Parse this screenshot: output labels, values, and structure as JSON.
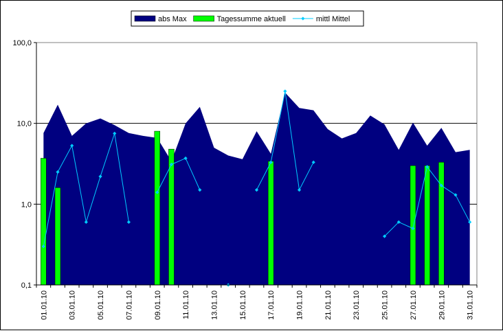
{
  "chart_data": {
    "type": "area",
    "y_scale": "log",
    "ylim": [
      0.1,
      100
    ],
    "y_ticks": [
      "100,0",
      "10,0",
      "1,0",
      "0,1"
    ],
    "grid": {
      "horizontal_major": true
    },
    "legend_position": "top",
    "x": [
      "01.01.10",
      "02.01.10",
      "03.01.10",
      "04.01.10",
      "05.01.10",
      "06.01.10",
      "07.01.10",
      "08.01.10",
      "09.01.10",
      "10.01.10",
      "11.01.10",
      "12.01.10",
      "13.01.10",
      "14.01.10",
      "15.01.10",
      "16.01.10",
      "17.01.10",
      "18.01.10",
      "19.01.10",
      "20.01.10",
      "21.01.10",
      "22.01.10",
      "23.01.10",
      "24.01.10",
      "25.01.10",
      "26.01.10",
      "27.01.10",
      "28.01.10",
      "29.01.10",
      "30.01.10",
      "31.01.10"
    ],
    "x_tick_labels": [
      "01.01.10",
      "03.01.10",
      "05.01.10",
      "07.01.10",
      "09.01.10",
      "11.01.10",
      "13.01.10",
      "15.01.10",
      "17.01.10",
      "19.01.10",
      "21.01.10",
      "23.01.10",
      "25.01.10",
      "27.01.10",
      "29.01.10",
      "31.01.10"
    ],
    "series": [
      {
        "name": "abs Max",
        "kind": "area",
        "color": "#000080",
        "values": [
          7.6,
          17,
          7,
          10,
          11.5,
          9.5,
          7.6,
          7,
          6.6,
          3.4,
          10,
          16,
          5,
          4,
          3.6,
          8,
          4.2,
          24,
          15.5,
          14.5,
          8.5,
          6.5,
          7.6,
          12.5,
          9.7,
          4.7,
          10.2,
          5.3,
          8.8,
          4.4,
          4.7
        ]
      },
      {
        "name": "Tagessumme aktuell",
        "kind": "bar",
        "color": "#00ff00",
        "values": [
          3.7,
          1.6,
          null,
          null,
          null,
          null,
          null,
          null,
          8,
          4.8,
          null,
          null,
          null,
          null,
          null,
          null,
          3.4,
          null,
          null,
          null,
          null,
          null,
          null,
          null,
          null,
          null,
          3,
          3,
          3.3,
          null,
          null
        ]
      },
      {
        "name": "mittl Mittel",
        "kind": "line",
        "color": "#00ccff",
        "values": [
          0.3,
          2.5,
          5.3,
          0.6,
          2.2,
          7.5,
          0.6,
          null,
          1.4,
          3.1,
          3.7,
          1.5,
          null,
          0.1,
          null,
          1.5,
          3.3,
          25,
          1.5,
          3.3,
          null,
          null,
          null,
          null,
          0.4,
          0.6,
          0.5,
          2.9,
          1.7,
          1.3,
          0.6
        ]
      }
    ]
  }
}
